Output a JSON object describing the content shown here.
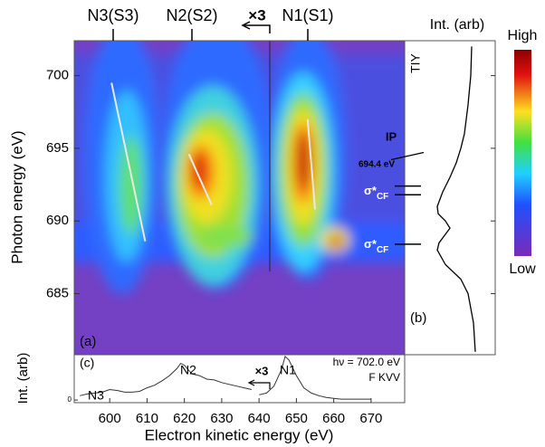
{
  "chart_data": [
    {
      "type": "heatmap",
      "panel_label": "(a)",
      "ylabel": "Photon energy (eV)",
      "ylim": [
        680.8,
        702.4
      ],
      "yticks": [
        685,
        690,
        695,
        700
      ],
      "peak_labels": [
        "N3(S3)",
        "N2(S2)",
        "N1(S1)"
      ],
      "scale_label": "×3",
      "ip_label": "IP",
      "ip_value_label": "694.4 eV",
      "ip_energy": 694.4,
      "resonance_labels": [
        {
          "symbol": "σ*",
          "sub": "CF"
        },
        {
          "symbol": "σ*",
          "sub": "CF"
        }
      ],
      "resonance_energies": [
        692.4,
        691.8,
        688.4
      ],
      "colorbar_labels": {
        "high": "High",
        "low": "Low"
      },
      "series": [
        {
          "color": "#e8e8e8",
          "x": [
            600.5,
            609.5
          ],
          "values": [
            699.5,
            688.6
          ]
        },
        {
          "color": "#e8e8e8",
          "x": [
            621.2,
            627.3
          ],
          "values": [
            694.6,
            691.1
          ]
        },
        {
          "color": "#e8e8e8",
          "x": [
            653.0,
            655.0
          ],
          "values": [
            697.0,
            690.8
          ]
        }
      ]
    },
    {
      "type": "line",
      "orientation": "vertical",
      "panel_label": "(b)",
      "title": "Int. (arb)",
      "label": "TIY",
      "color": "#000000",
      "xlim": [
        0,
        100
      ],
      "y": [
        702,
        700,
        698,
        696,
        695,
        694,
        693,
        692,
        691,
        690.5,
        690,
        689.5,
        689,
        688.5,
        688,
        687,
        686,
        685,
        684,
        683,
        681
      ],
      "values": [
        74,
        73,
        70,
        66,
        62,
        57,
        50,
        42,
        36,
        37,
        45,
        50,
        44,
        38,
        36,
        45,
        62,
        70,
        73,
        76,
        78
      ]
    },
    {
      "type": "line",
      "panel_label": "(c)",
      "xlabel": "Electron kinetic energy (eV)",
      "ylabel": "Int. (arb)",
      "color": "#333333",
      "xlim": [
        590.5,
        679
      ],
      "xticks": [
        600,
        610,
        620,
        630,
        640,
        650,
        660,
        670
      ],
      "ylim": [
        -3,
        52
      ],
      "yticks": [
        0
      ],
      "peak_labels": [
        "N3",
        "N2",
        "N1"
      ],
      "scale_label": "×3",
      "excitation_label": "hν = 702.0 eV",
      "transition_label": "F KVV",
      "x": [
        592,
        594,
        596,
        598,
        600,
        602,
        604,
        606,
        608,
        610,
        612,
        614,
        616,
        618,
        619,
        620,
        622,
        624,
        626,
        628,
        630,
        632,
        634,
        636,
        638,
        639,
        640,
        642,
        644,
        646,
        647,
        648,
        650,
        652,
        654,
        656,
        658,
        660,
        662,
        666,
        670
      ],
      "values": [
        5,
        7,
        8,
        9,
        12,
        11,
        9,
        9,
        10,
        14,
        17,
        22,
        28,
        36,
        42,
        40,
        30,
        28,
        24,
        23,
        20,
        18,
        16,
        14,
        12,
        null,
        6,
        8,
        16,
        35,
        50,
        46,
        28,
        14,
        8,
        5,
        3,
        2,
        1,
        1,
        1
      ]
    }
  ]
}
